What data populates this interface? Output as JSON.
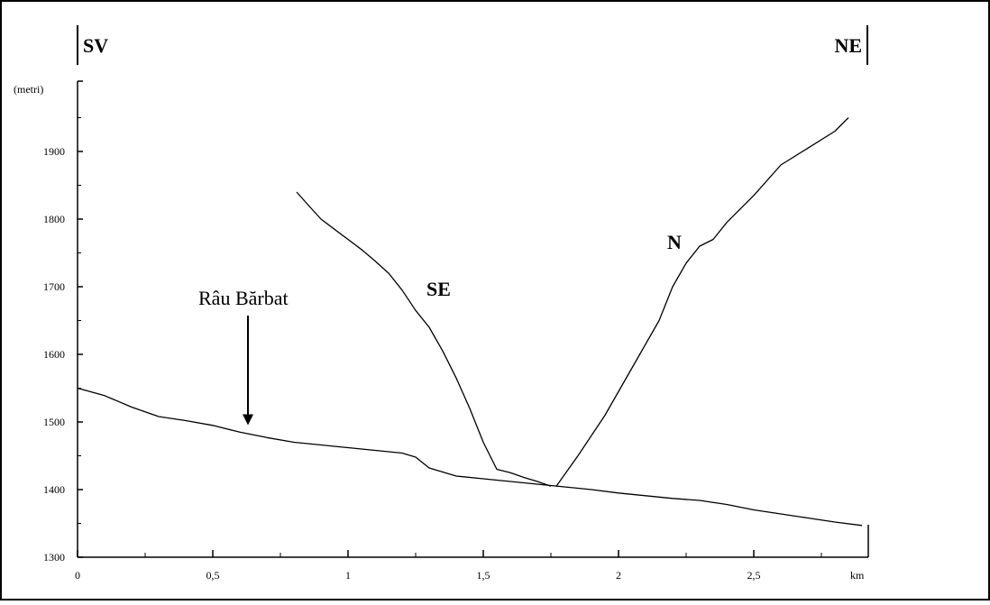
{
  "chart_data": {
    "type": "line",
    "title": "",
    "xlabel": "km",
    "ylabel": "(metri)",
    "xlim": [
      0,
      2.9
    ],
    "ylim": [
      1300,
      2000
    ],
    "x_ticks": [
      0,
      0.5,
      1,
      1.5,
      2,
      2.5
    ],
    "x_tick_labels": [
      "0",
      "0,5",
      "1",
      "1,5",
      "2",
      "2,5"
    ],
    "x_minor_ticks": [
      0.25,
      0.75,
      1.25,
      1.75,
      2.25,
      2.75
    ],
    "y_ticks": [
      1300,
      1400,
      1500,
      1600,
      1700,
      1800,
      1900
    ],
    "y_tick_labels": [
      "1300",
      "1400",
      "1500",
      "1600",
      "1700",
      "1800",
      "1900"
    ],
    "grid": false,
    "direction_left": "SV",
    "direction_right": "NE",
    "series": [
      {
        "key": "valley",
        "x": [
          0,
          0.1,
          0.2,
          0.3,
          0.4,
          0.5,
          0.6,
          0.7,
          0.8,
          0.9,
          1.0,
          1.1,
          1.2,
          1.25,
          1.3,
          1.4,
          1.5,
          1.6,
          1.7,
          1.75,
          1.8,
          1.9,
          2.0,
          2.1,
          2.2,
          2.3,
          2.4,
          2.5,
          2.6,
          2.7,
          2.8,
          2.9
        ],
        "values": [
          1550,
          1539,
          1522,
          1508,
          1502,
          1495,
          1485,
          1477,
          1470,
          1466,
          1462,
          1458,
          1454,
          1448,
          1432,
          1420,
          1416,
          1412,
          1408,
          1406,
          1404,
          1400,
          1395,
          1391,
          1387,
          1384,
          1378,
          1370,
          1364,
          1358,
          1352,
          1347
        ]
      },
      {
        "key": "se-slope",
        "name": "SE",
        "x": [
          0.81,
          0.85,
          0.9,
          0.95,
          1.0,
          1.05,
          1.1,
          1.15,
          1.2,
          1.25,
          1.3,
          1.35,
          1.4,
          1.45,
          1.5,
          1.55,
          1.6,
          1.65,
          1.7,
          1.75
        ],
        "values": [
          1840,
          1822,
          1800,
          1785,
          1770,
          1755,
          1738,
          1720,
          1695,
          1665,
          1640,
          1605,
          1565,
          1520,
          1470,
          1430,
          1425,
          1418,
          1412,
          1405
        ]
      },
      {
        "key": "n-slope",
        "name": "N",
        "x": [
          1.77,
          1.85,
          1.95,
          2.05,
          2.15,
          2.2,
          2.25,
          2.3,
          2.35,
          2.4,
          2.5,
          2.6,
          2.7,
          2.8,
          2.85
        ],
        "values": [
          1405,
          1450,
          1510,
          1580,
          1650,
          1700,
          1735,
          1760,
          1770,
          1795,
          1835,
          1880,
          1905,
          1930,
          1950
        ]
      }
    ],
    "annotations": [
      {
        "key": "river",
        "text": "Râu Bărbat",
        "x": 0.63,
        "y": 1490
      }
    ]
  }
}
